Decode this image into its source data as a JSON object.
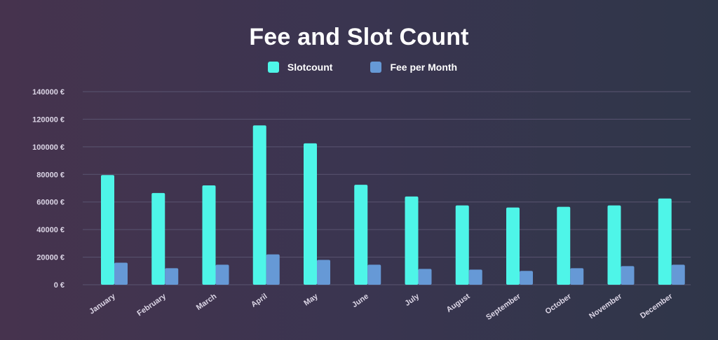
{
  "colors": {
    "slotcount": "#4ef5e8",
    "fee": "#6699d6",
    "grid": "#5a5570"
  },
  "chart_data": {
    "type": "bar",
    "title": "Fee and Slot Count",
    "categories": [
      "January",
      "February",
      "March",
      "April",
      "May",
      "June",
      "July",
      "August",
      "September",
      "October",
      "November",
      "December"
    ],
    "series": [
      {
        "name": "Slotcount",
        "values": [
          79500,
          66500,
          72000,
          115500,
          102500,
          72500,
          64000,
          57500,
          56000,
          56500,
          57500,
          62500
        ]
      },
      {
        "name": "Fee per Month",
        "values": [
          16000,
          12000,
          14500,
          22000,
          18000,
          14500,
          11500,
          11000,
          10000,
          12000,
          13500,
          14500
        ]
      }
    ],
    "yticks": [
      {
        "value": 0,
        "label": "0 €"
      },
      {
        "value": 20000,
        "label": "20000 €"
      },
      {
        "value": 40000,
        "label": "40000 €"
      },
      {
        "value": 60000,
        "label": "60000 €"
      },
      {
        "value": 80000,
        "label": "80000 €"
      },
      {
        "value": 100000,
        "label": "100000 €"
      },
      {
        "value": 120000,
        "label": "120000 €"
      },
      {
        "value": 140000,
        "label": "140000 €"
      }
    ],
    "ylim": [
      0,
      140000
    ],
    "legend_position": "top-center",
    "grid": true
  }
}
